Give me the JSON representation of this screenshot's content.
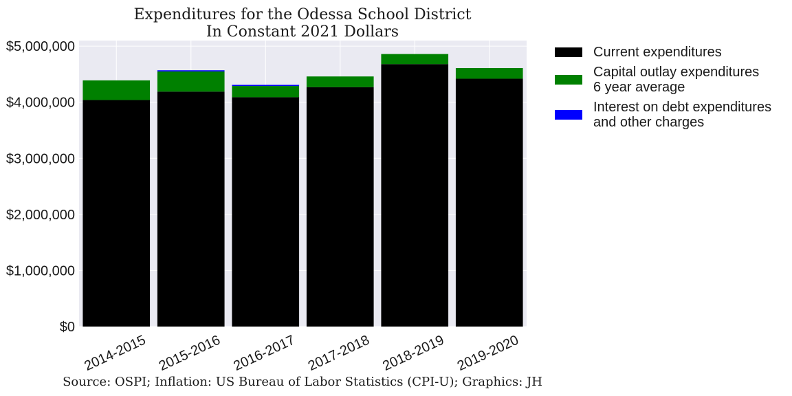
{
  "chart_data": {
    "type": "bar",
    "stacked": true,
    "title": "Expenditures for the Odessa School District",
    "subtitle": "In Constant 2021 Dollars",
    "caption": "Source: OSPI; Inflation: US Bureau of Labor Statistics (CPI-U); Graphics: JH",
    "xlabel": "",
    "ylabel": "",
    "categories": [
      "2014-2015",
      "2015-2016",
      "2016-2017",
      "2017-2018",
      "2018-2019",
      "2019-2020"
    ],
    "series": [
      {
        "name": "Current expenditures",
        "color": "#000000",
        "values": [
          4040000,
          4190000,
          4090000,
          4270000,
          4680000,
          4420000
        ]
      },
      {
        "name": "Capital outlay expenditures\n6 year average",
        "color": "#008000",
        "values": [
          350000,
          360000,
          200000,
          190000,
          180000,
          190000
        ]
      },
      {
        "name": "Interest on debt expenditures\nand other charges",
        "color": "#0000ff",
        "values": [
          0,
          20000,
          20000,
          0,
          0,
          0
        ]
      }
    ],
    "ylim": [
      0,
      5100000
    ],
    "yticks": [
      0,
      1000000,
      2000000,
      3000000,
      4000000,
      5000000
    ],
    "ytick_labels": [
      "$0",
      "$1,000,000",
      "$2,000,000",
      "$3,000,000",
      "$4,000,000",
      "$5,000,000"
    ],
    "grid": true,
    "legend_position": "right-top",
    "plot_background": "#eaeaf2",
    "grid_color": "#ffffff"
  }
}
